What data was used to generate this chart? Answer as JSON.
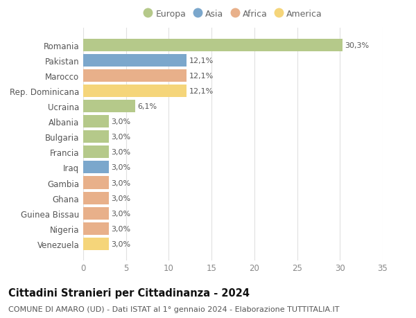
{
  "countries": [
    "Romania",
    "Pakistan",
    "Marocco",
    "Rep. Dominicana",
    "Ucraina",
    "Albania",
    "Bulgaria",
    "Francia",
    "Iraq",
    "Gambia",
    "Ghana",
    "Guinea Bissau",
    "Nigeria",
    "Venezuela"
  ],
  "values": [
    30.3,
    12.1,
    12.1,
    12.1,
    6.1,
    3.0,
    3.0,
    3.0,
    3.0,
    3.0,
    3.0,
    3.0,
    3.0,
    3.0
  ],
  "labels": [
    "30,3%",
    "12,1%",
    "12,1%",
    "12,1%",
    "6,1%",
    "3,0%",
    "3,0%",
    "3,0%",
    "3,0%",
    "3,0%",
    "3,0%",
    "3,0%",
    "3,0%",
    "3,0%"
  ],
  "continents": [
    "Europa",
    "Asia",
    "Africa",
    "America",
    "Europa",
    "Europa",
    "Europa",
    "Europa",
    "Asia",
    "Africa",
    "Africa",
    "Africa",
    "Africa",
    "America"
  ],
  "colors": {
    "Europa": "#b5c98a",
    "Asia": "#7ba7cc",
    "Africa": "#e8b08a",
    "America": "#f5d57a"
  },
  "legend_order": [
    "Europa",
    "Asia",
    "Africa",
    "America"
  ],
  "title": "Cittadini Stranieri per Cittadinanza - 2024",
  "subtitle": "COMUNE DI AMARO (UD) - Dati ISTAT al 1° gennaio 2024 - Elaborazione TUTTITALIA.IT",
  "xlim": [
    0,
    35
  ],
  "xticks": [
    0,
    5,
    10,
    15,
    20,
    25,
    30,
    35
  ],
  "background_color": "#ffffff",
  "grid_color": "#e0e0e0",
  "bar_height": 0.82,
  "title_fontsize": 10.5,
  "subtitle_fontsize": 8,
  "tick_label_fontsize": 8.5,
  "value_label_fontsize": 8,
  "legend_fontsize": 9
}
